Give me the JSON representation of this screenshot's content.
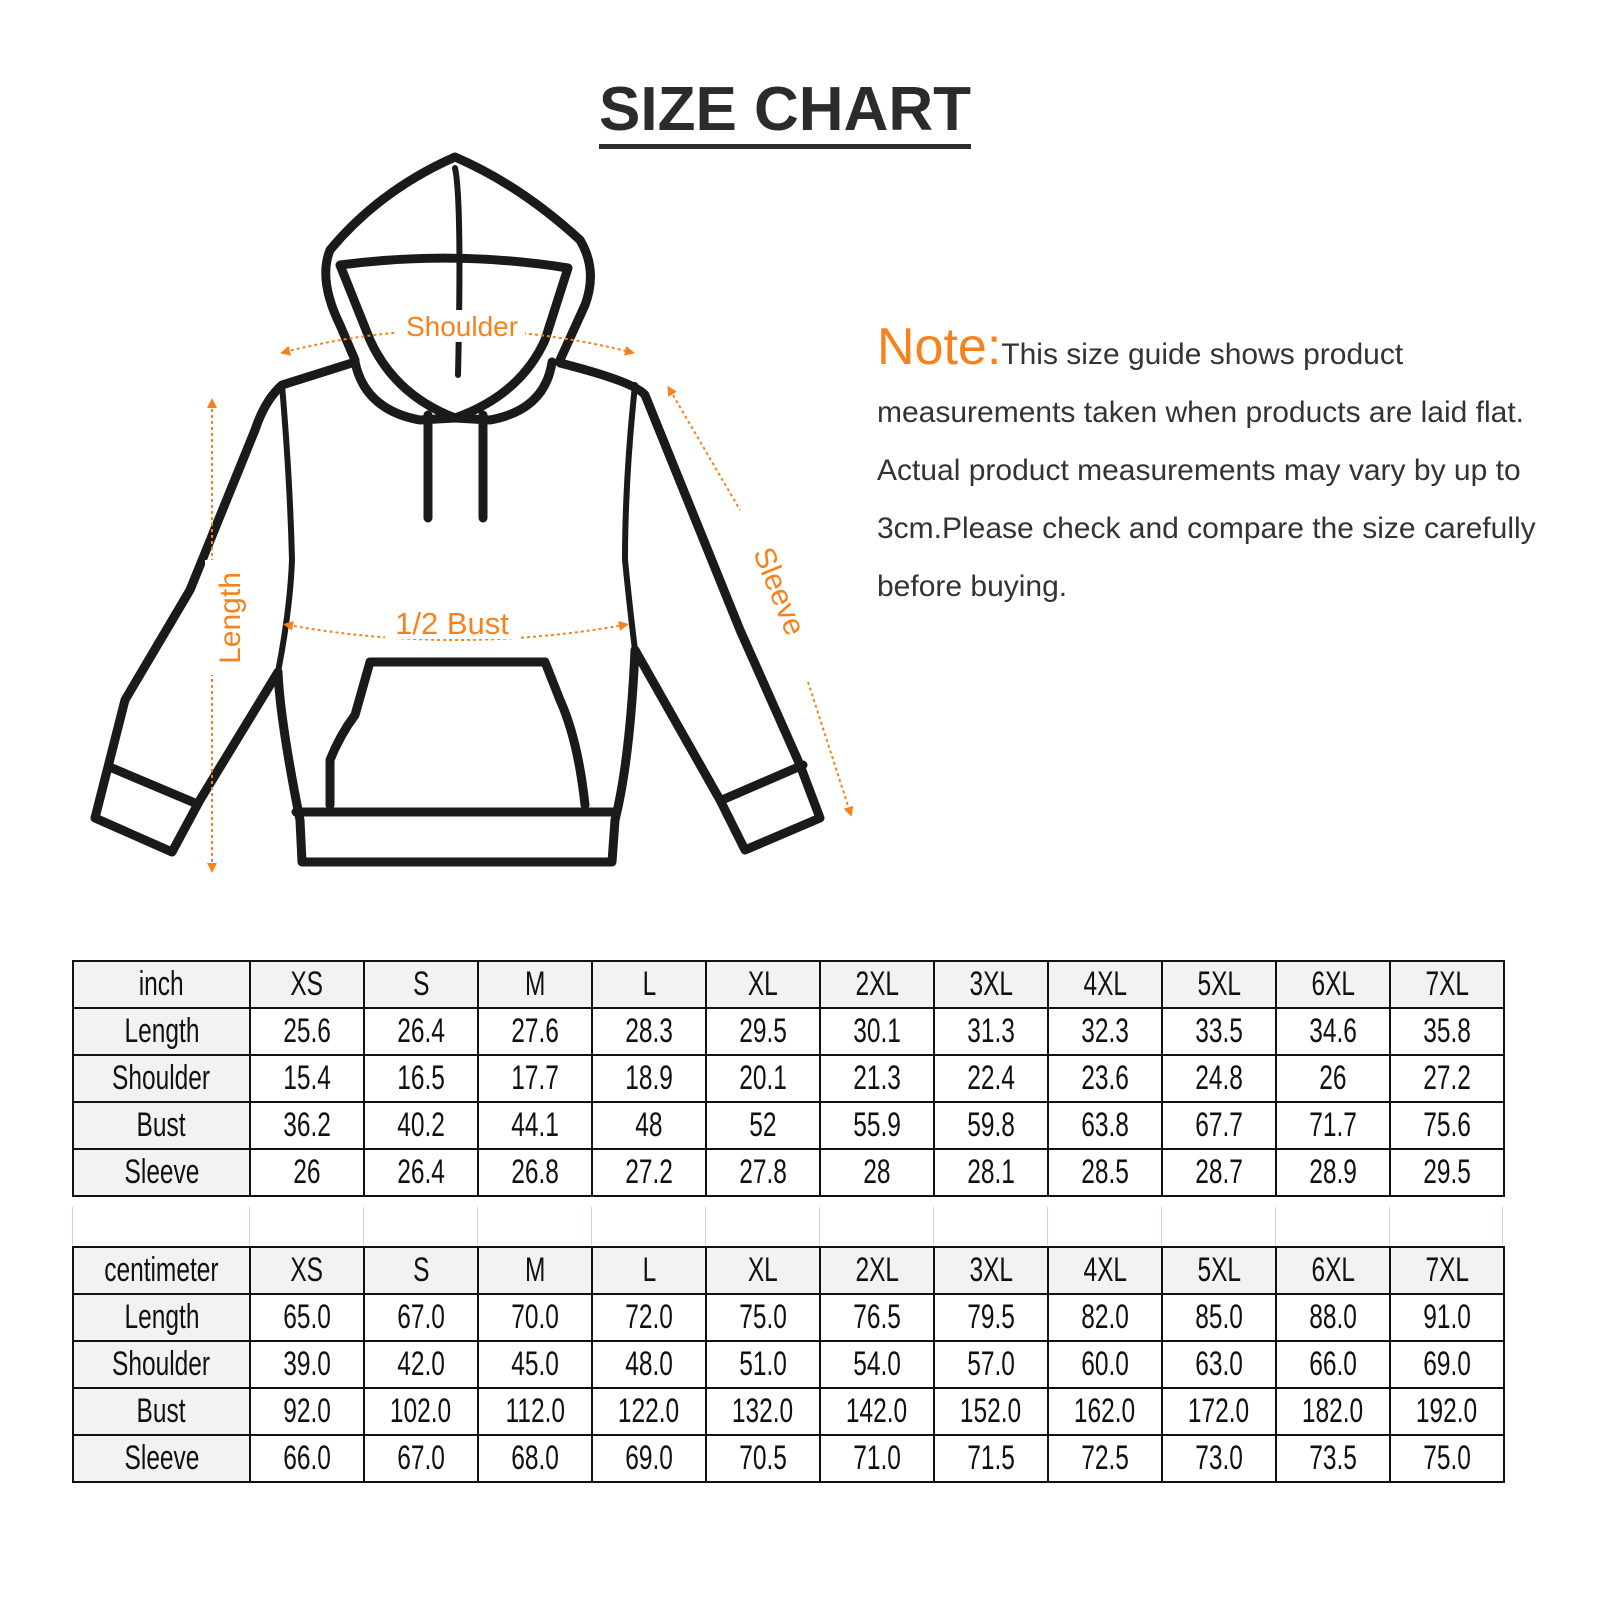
{
  "title": "SIZE CHART",
  "diagram_labels": {
    "shoulder": "Shoulder",
    "length": "Length",
    "bust": "1/2 Bust",
    "sleeve": "Sleeve"
  },
  "note": {
    "label": "Note:",
    "text": "This size guide shows product measurements taken when products are laid flat. Actual product measurements may vary by up to 3cm.Please check and compare the size carefully before buying."
  },
  "colors": {
    "accent": "#f7821b",
    "header_bg": "#f2f2f2",
    "line": "#111111"
  },
  "sizes": [
    "XS",
    "S",
    "M",
    "L",
    "XL",
    "2XL",
    "3XL",
    "4XL",
    "5XL",
    "6XL",
    "7XL"
  ],
  "tables": [
    {
      "unit": "inch",
      "rows": [
        {
          "label": "Length",
          "values": [
            "25.6",
            "26.4",
            "27.6",
            "28.3",
            "29.5",
            "30.1",
            "31.3",
            "32.3",
            "33.5",
            "34.6",
            "35.8"
          ]
        },
        {
          "label": "Shoulder",
          "values": [
            "15.4",
            "16.5",
            "17.7",
            "18.9",
            "20.1",
            "21.3",
            "22.4",
            "23.6",
            "24.8",
            "26",
            "27.2"
          ]
        },
        {
          "label": "Bust",
          "values": [
            "36.2",
            "40.2",
            "44.1",
            "48",
            "52",
            "55.9",
            "59.8",
            "63.8",
            "67.7",
            "71.7",
            "75.6"
          ]
        },
        {
          "label": "Sleeve",
          "values": [
            "26",
            "26.4",
            "26.8",
            "27.2",
            "27.8",
            "28",
            "28.1",
            "28.5",
            "28.7",
            "28.9",
            "29.5"
          ]
        }
      ]
    },
    {
      "unit": "centimeter",
      "rows": [
        {
          "label": "Length",
          "values": [
            "65.0",
            "67.0",
            "70.0",
            "72.0",
            "75.0",
            "76.5",
            "79.5",
            "82.0",
            "85.0",
            "88.0",
            "91.0"
          ]
        },
        {
          "label": "Shoulder",
          "values": [
            "39.0",
            "42.0",
            "45.0",
            "48.0",
            "51.0",
            "54.0",
            "57.0",
            "60.0",
            "63.0",
            "66.0",
            "69.0"
          ]
        },
        {
          "label": "Bust",
          "values": [
            "92.0",
            "102.0",
            "112.0",
            "122.0",
            "132.0",
            "142.0",
            "152.0",
            "162.0",
            "172.0",
            "182.0",
            "192.0"
          ]
        },
        {
          "label": "Sleeve",
          "values": [
            "66.0",
            "67.0",
            "68.0",
            "69.0",
            "70.5",
            "71.0",
            "71.5",
            "72.5",
            "73.0",
            "73.5",
            "75.0"
          ]
        }
      ]
    }
  ]
}
